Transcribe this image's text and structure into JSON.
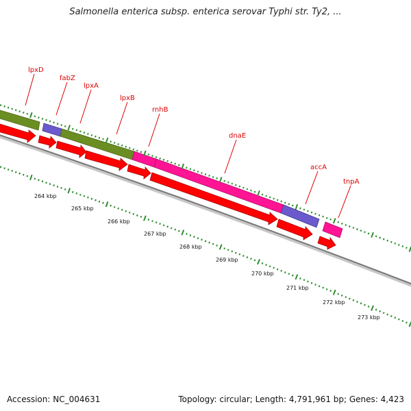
{
  "title": "Salmonella enterica subsp. enterica serovar Typhi str. Ty2, ...",
  "footer": {
    "accession": "Accession: NC_004631",
    "summary": "Topology: circular; Length: 4,791,961 bp; Genes: 4,423"
  },
  "colors": {
    "gene_label": "#dd0000",
    "forward_cds": "#ff0000",
    "olive_feature": "#6b8e23",
    "blue_feature": "#6a5acd",
    "pink_feature": "#ff1493",
    "backbone": "#888888",
    "tick": "#2e8b2e"
  },
  "genes": [
    "lpxD",
    "fabZ",
    "lpxA",
    "lpxB",
    "rnhB",
    "dnaE",
    "accA",
    "tnpA"
  ],
  "scale_labels": [
    "264 kbp",
    "265 kbp",
    "266 kbp",
    "267 kbp",
    "268 kbp",
    "269 kbp",
    "270 kbp",
    "271 kbp",
    "272 kbp",
    "273 kbp"
  ]
}
